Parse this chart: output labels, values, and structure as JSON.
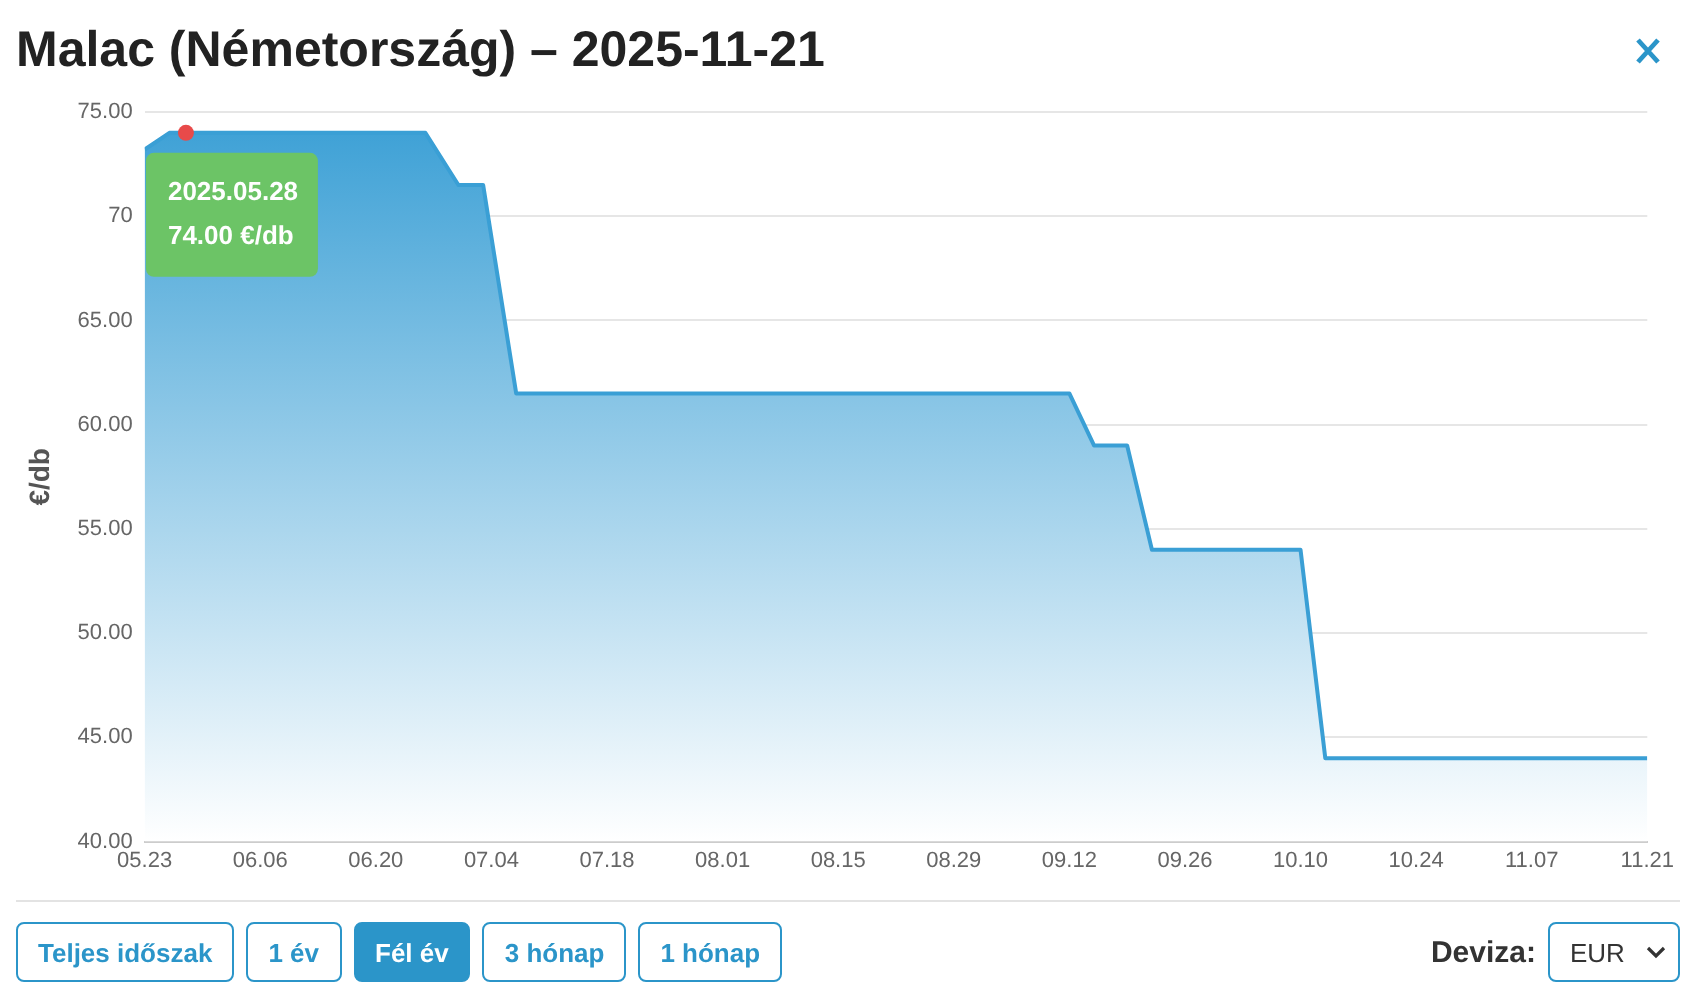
{
  "chart_data": {
    "type": "area",
    "title": "Malac (Németország) – 2025-11-21",
    "ylabel": "€/db",
    "x": [
      "2025-05-23",
      "2025-05-26",
      "2025-05-28",
      "2025-06-26",
      "2025-06-30",
      "2025-07-03",
      "2025-07-07",
      "2025-09-12",
      "2025-09-15",
      "2025-09-19",
      "2025-09-22",
      "2025-10-10",
      "2025-10-13",
      "2025-11-21"
    ],
    "series": [
      {
        "color": "#3a9fd5",
        "values": [
          73.2,
          74.0,
          74.0,
          74.0,
          71.5,
          71.5,
          61.5,
          61.5,
          59.0,
          59.0,
          54.0,
          54.0,
          44.0,
          44.0
        ]
      }
    ],
    "xlim": [
      "2025-05-23",
      "2025-11-21"
    ],
    "xticks": [
      {
        "value": "2025-05-23",
        "label": "05.23"
      },
      {
        "value": "2025-06-06",
        "label": "06.06"
      },
      {
        "value": "2025-06-20",
        "label": "06.20"
      },
      {
        "value": "2025-07-04",
        "label": "07.04"
      },
      {
        "value": "2025-07-18",
        "label": "07.18"
      },
      {
        "value": "2025-08-01",
        "label": "08.01"
      },
      {
        "value": "2025-08-15",
        "label": "08.15"
      },
      {
        "value": "2025-08-29",
        "label": "08.29"
      },
      {
        "value": "2025-09-12",
        "label": "09.12"
      },
      {
        "value": "2025-09-26",
        "label": "09.26"
      },
      {
        "value": "2025-10-10",
        "label": "10.10"
      },
      {
        "value": "2025-10-24",
        "label": "10.24"
      },
      {
        "value": "2025-11-07",
        "label": "11.07"
      },
      {
        "value": "2025-11-21",
        "label": "11.21"
      }
    ],
    "ylim": [
      40,
      75
    ],
    "yticks": [
      {
        "value": 40,
        "label": "40.00"
      },
      {
        "value": 45,
        "label": "45.00"
      },
      {
        "value": 50,
        "label": "50.00"
      },
      {
        "value": 55,
        "label": "55.00"
      },
      {
        "value": 60,
        "label": "60.00"
      },
      {
        "value": 65,
        "label": "65.00"
      },
      {
        "value": 70,
        "label": "70"
      },
      {
        "value": 75,
        "label": "75.00"
      }
    ],
    "grid": "y",
    "legend": false,
    "marker": "none",
    "line_style": "solid",
    "annotations": [
      {
        "text": "2025.05.28\n74.00 €/db",
        "x": "2025-05-28",
        "y": 74.0
      },
      "Teljes időszak",
      "1 év",
      "Fél év",
      "3 hónap",
      "1 hónap",
      "Deviza:",
      "EUR"
    ]
  }
}
